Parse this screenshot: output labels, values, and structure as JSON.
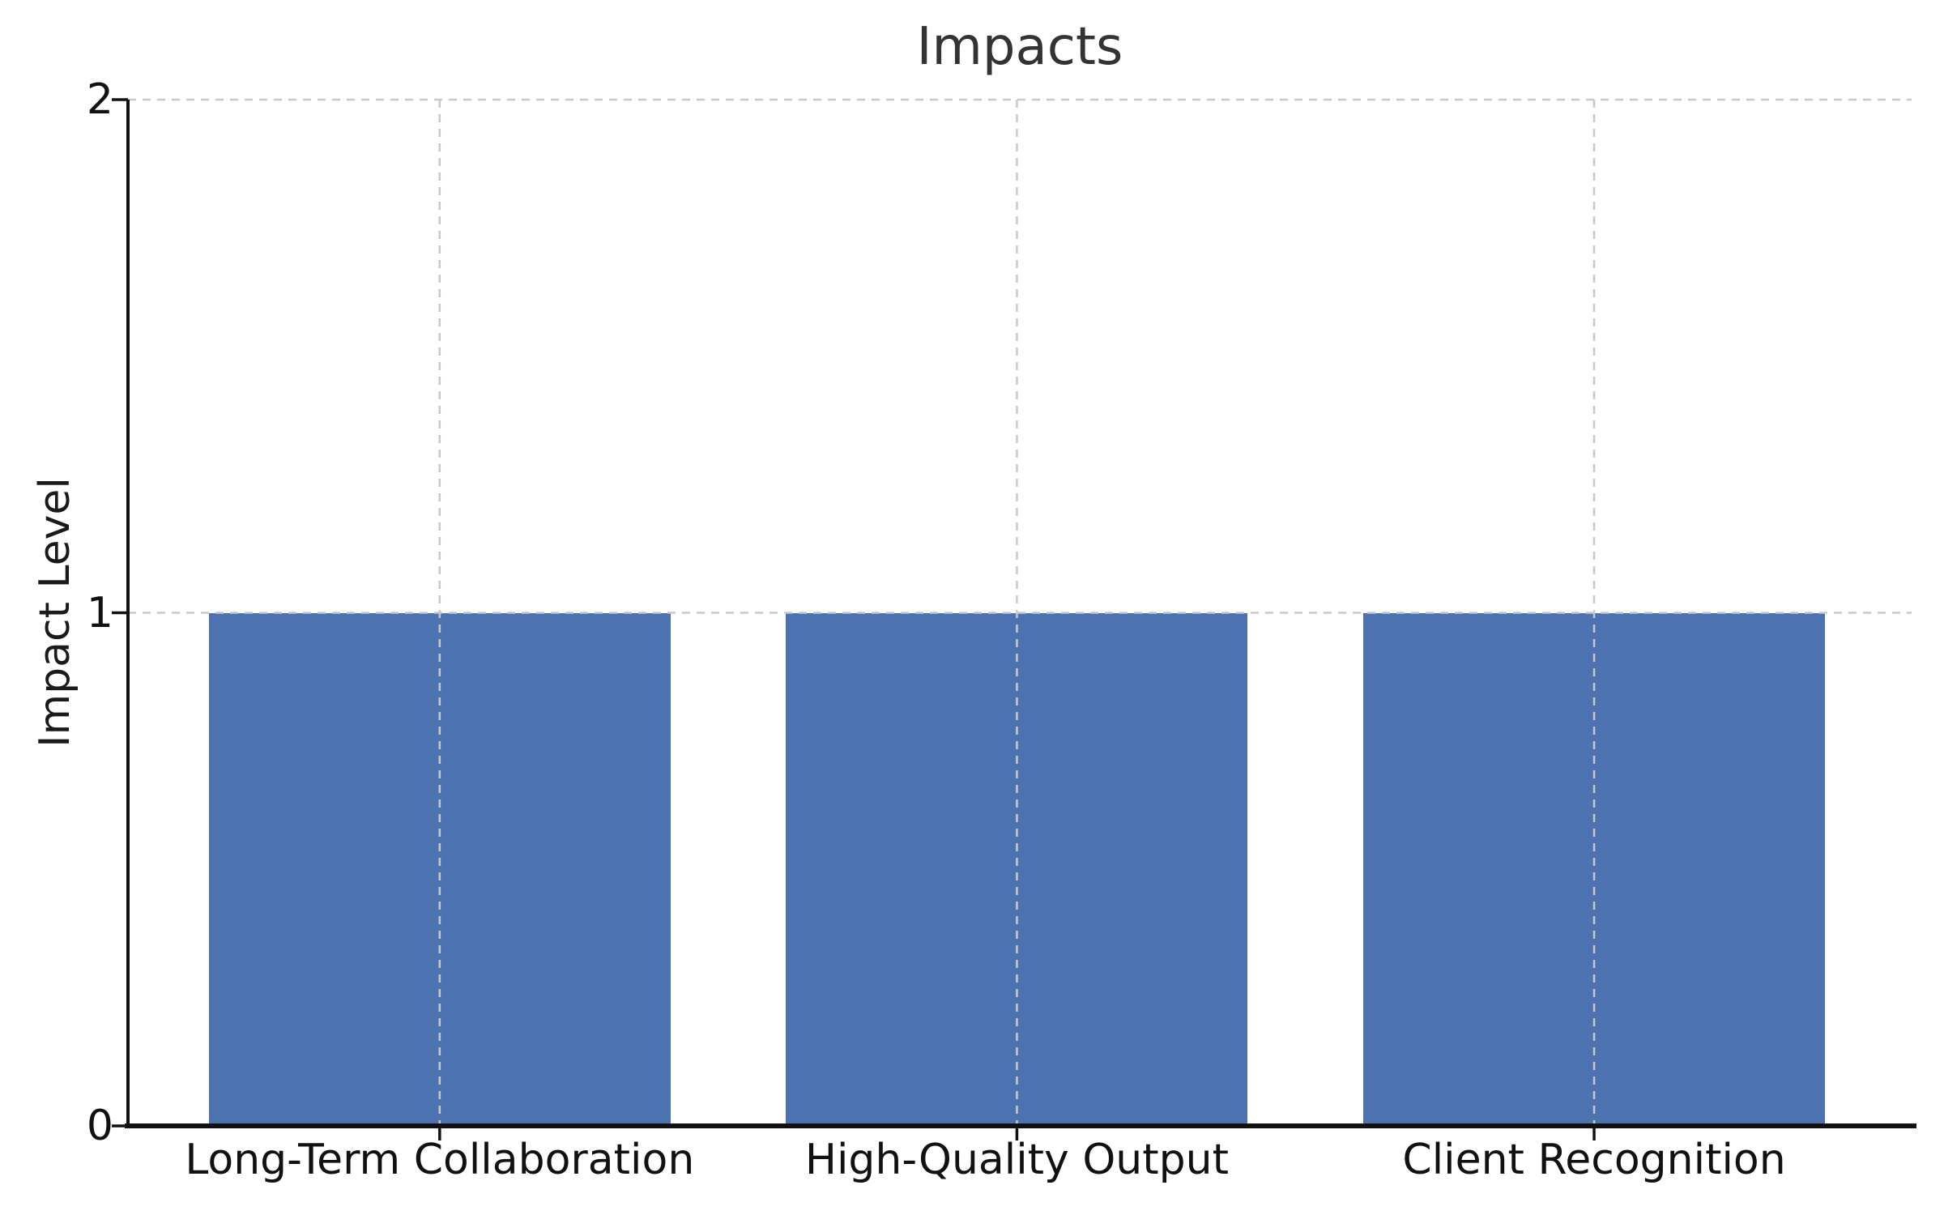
{
  "chart_data": {
    "type": "bar",
    "title": "Impacts",
    "xlabel": "",
    "ylabel": "Impact Level",
    "categories": [
      "Long-Term Collaboration",
      "High-Quality Output",
      "Client Recognition"
    ],
    "values": [
      1,
      1,
      1
    ],
    "yticks": [
      0,
      1,
      2
    ],
    "ytick_labels": [
      "0",
      "1",
      "2"
    ],
    "ylim": [
      0,
      2
    ],
    "xlim": [
      -0.54,
      2.55
    ],
    "bar_width": 0.8,
    "bar_color": "#4C72B0",
    "grid": "dashed gridlines on both axes, drawn above bars",
    "grid_color": "#c9c9c9",
    "title_color": "#333333",
    "text_color": "#111111",
    "legend": "none",
    "background": "#ffffff"
  }
}
